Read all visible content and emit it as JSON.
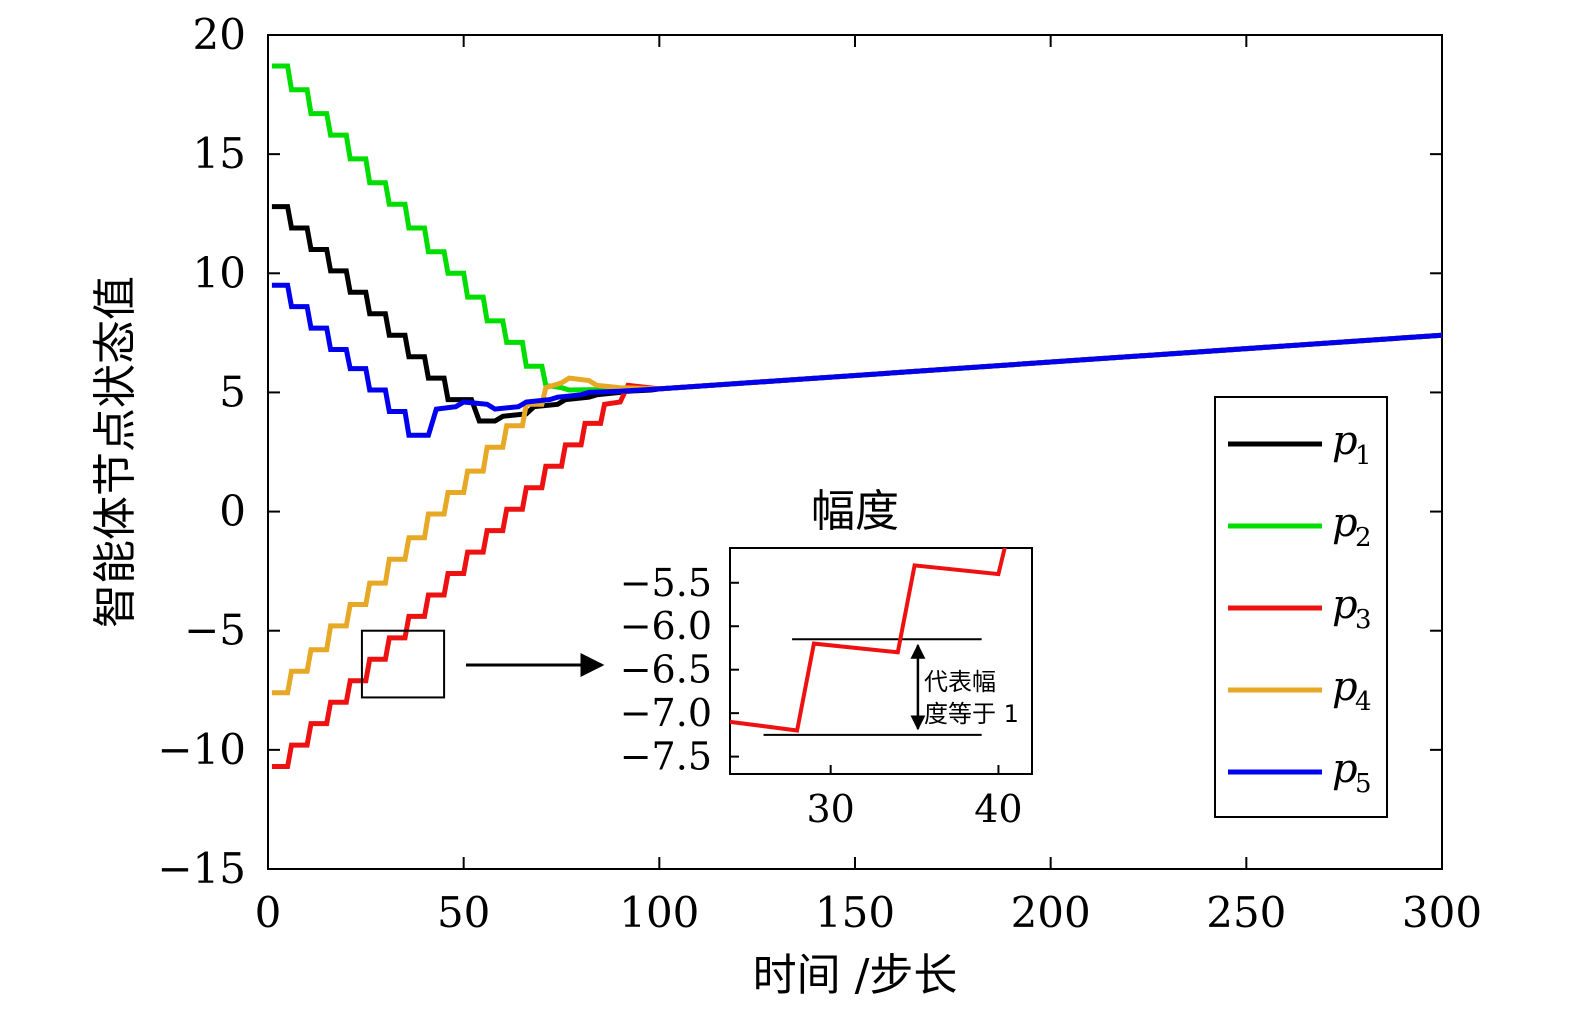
{
  "chart_data": {
    "type": "line",
    "xlabel": "时间 /步长",
    "ylabel": "智能体节点状态值",
    "xlim": [
      0,
      300
    ],
    "ylim": [
      -15,
      20
    ],
    "xticks": [
      "0",
      "50",
      "100",
      "150",
      "200",
      "250",
      "300"
    ],
    "yticks": [
      "20",
      "15",
      "10",
      "5",
      "0",
      "−5",
      "−10",
      "−15"
    ],
    "grid": false,
    "legend_position": "right",
    "series": [
      {
        "name": "p",
        "sub": "1",
        "color": "#000000",
        "points": [
          [
            1,
            12.8
          ],
          [
            5,
            12.8
          ],
          [
            6,
            11.9
          ],
          [
            10,
            11.9
          ],
          [
            11,
            11.0
          ],
          [
            15,
            11.0
          ],
          [
            16,
            10.1
          ],
          [
            20,
            10.1
          ],
          [
            21,
            9.2
          ],
          [
            25,
            9.2
          ],
          [
            26,
            8.3
          ],
          [
            30,
            8.3
          ],
          [
            31,
            7.4
          ],
          [
            35,
            7.4
          ],
          [
            36,
            6.5
          ],
          [
            40,
            6.5
          ],
          [
            41,
            5.6
          ],
          [
            45,
            5.6
          ],
          [
            46,
            4.7
          ],
          [
            52,
            4.7
          ],
          [
            54,
            3.8
          ],
          [
            58,
            3.8
          ],
          [
            60,
            4.0
          ],
          [
            66,
            4.1
          ],
          [
            68,
            4.4
          ],
          [
            74,
            4.5
          ],
          [
            76,
            4.7
          ],
          [
            82,
            4.8
          ],
          [
            84,
            4.9
          ],
          [
            90,
            5.0
          ],
          [
            92,
            5.05
          ],
          [
            98,
            5.1
          ],
          [
            100,
            5.15
          ],
          [
            300,
            7.4
          ]
        ]
      },
      {
        "name": "p",
        "sub": "2",
        "color": "#00dd00",
        "points": [
          [
            1,
            18.7
          ],
          [
            5,
            18.7
          ],
          [
            6,
            17.7
          ],
          [
            10,
            17.7
          ],
          [
            11,
            16.7
          ],
          [
            15,
            16.7
          ],
          [
            16,
            15.8
          ],
          [
            20,
            15.8
          ],
          [
            21,
            14.8
          ],
          [
            25,
            14.8
          ],
          [
            26,
            13.8
          ],
          [
            30,
            13.8
          ],
          [
            31,
            12.9
          ],
          [
            35,
            12.9
          ],
          [
            36,
            11.9
          ],
          [
            40,
            11.9
          ],
          [
            41,
            10.9
          ],
          [
            45,
            10.9
          ],
          [
            46,
            10.0
          ],
          [
            50,
            10.0
          ],
          [
            51,
            9.0
          ],
          [
            55,
            9.0
          ],
          [
            56,
            8.0
          ],
          [
            60,
            8.0
          ],
          [
            61,
            7.1
          ],
          [
            65,
            7.1
          ],
          [
            66,
            6.1
          ],
          [
            70,
            6.1
          ],
          [
            71,
            5.3
          ],
          [
            75,
            5.2
          ],
          [
            77,
            5.1
          ],
          [
            100,
            5.15
          ],
          [
            300,
            7.4
          ]
        ]
      },
      {
        "name": "p",
        "sub": "3",
        "color": "#ee1111",
        "points": [
          [
            1,
            -10.7
          ],
          [
            5,
            -10.7
          ],
          [
            6,
            -9.8
          ],
          [
            10,
            -9.8
          ],
          [
            11,
            -8.9
          ],
          [
            15,
            -8.9
          ],
          [
            16,
            -8.0
          ],
          [
            20,
            -8.0
          ],
          [
            21,
            -7.1
          ],
          [
            25,
            -7.1
          ],
          [
            26,
            -6.2
          ],
          [
            30,
            -6.2
          ],
          [
            31,
            -5.3
          ],
          [
            35,
            -5.3
          ],
          [
            36,
            -4.4
          ],
          [
            40,
            -4.4
          ],
          [
            41,
            -3.5
          ],
          [
            45,
            -3.5
          ],
          [
            46,
            -2.6
          ],
          [
            50,
            -2.6
          ],
          [
            51,
            -1.7
          ],
          [
            55,
            -1.7
          ],
          [
            56,
            -0.8
          ],
          [
            60,
            -0.8
          ],
          [
            61,
            0.1
          ],
          [
            65,
            0.1
          ],
          [
            66,
            1.0
          ],
          [
            70,
            1.0
          ],
          [
            71,
            1.9
          ],
          [
            75,
            1.9
          ],
          [
            76,
            2.8
          ],
          [
            80,
            2.8
          ],
          [
            81,
            3.7
          ],
          [
            85,
            3.7
          ],
          [
            86,
            4.5
          ],
          [
            90,
            4.6
          ],
          [
            92,
            5.3
          ],
          [
            100,
            5.15
          ],
          [
            300,
            7.4
          ]
        ]
      },
      {
        "name": "p",
        "sub": "4",
        "color": "#e6a825",
        "points": [
          [
            1,
            -7.6
          ],
          [
            5,
            -7.6
          ],
          [
            6,
            -6.7
          ],
          [
            10,
            -6.7
          ],
          [
            11,
            -5.8
          ],
          [
            15,
            -5.8
          ],
          [
            16,
            -4.8
          ],
          [
            20,
            -4.8
          ],
          [
            21,
            -3.9
          ],
          [
            25,
            -3.9
          ],
          [
            26,
            -3.0
          ],
          [
            30,
            -3.0
          ],
          [
            31,
            -2.0
          ],
          [
            35,
            -2.0
          ],
          [
            36,
            -1.1
          ],
          [
            40,
            -1.1
          ],
          [
            41,
            -0.1
          ],
          [
            45,
            -0.1
          ],
          [
            46,
            0.8
          ],
          [
            50,
            0.8
          ],
          [
            51,
            1.7
          ],
          [
            55,
            1.7
          ],
          [
            56,
            2.7
          ],
          [
            60,
            2.7
          ],
          [
            61,
            3.6
          ],
          [
            65,
            3.6
          ],
          [
            66,
            4.5
          ],
          [
            70,
            4.5
          ],
          [
            71,
            5.2
          ],
          [
            75,
            5.4
          ],
          [
            77,
            5.6
          ],
          [
            82,
            5.5
          ],
          [
            84,
            5.3
          ],
          [
            90,
            5.2
          ],
          [
            100,
            5.15
          ],
          [
            300,
            7.4
          ]
        ]
      },
      {
        "name": "p",
        "sub": "5",
        "color": "#0000ee",
        "points": [
          [
            1,
            9.5
          ],
          [
            5,
            9.5
          ],
          [
            6,
            8.6
          ],
          [
            10,
            8.6
          ],
          [
            11,
            7.7
          ],
          [
            15,
            7.7
          ],
          [
            16,
            6.8
          ],
          [
            20,
            6.8
          ],
          [
            21,
            6.0
          ],
          [
            25,
            6.0
          ],
          [
            26,
            5.1
          ],
          [
            30,
            5.1
          ],
          [
            31,
            4.2
          ],
          [
            35,
            4.2
          ],
          [
            36,
            3.2
          ],
          [
            41,
            3.2
          ],
          [
            43,
            4.3
          ],
          [
            48,
            4.4
          ],
          [
            50,
            4.6
          ],
          [
            56,
            4.5
          ],
          [
            58,
            4.3
          ],
          [
            64,
            4.4
          ],
          [
            66,
            4.6
          ],
          [
            72,
            4.7
          ],
          [
            74,
            4.8
          ],
          [
            80,
            4.9
          ],
          [
            82,
            5.0
          ],
          [
            90,
            5.05
          ],
          [
            100,
            5.15
          ],
          [
            300,
            7.4
          ]
        ]
      }
    ],
    "zoom_box": {
      "x": [
        24,
        45
      ],
      "y": [
        -7.8,
        -5.0
      ]
    },
    "inset": {
      "title": "幅度",
      "xlim": [
        24,
        42
      ],
      "ylim": [
        -7.7,
        -5.1
      ],
      "xticks": [
        {
          "value": 30,
          "label": "30"
        },
        {
          "value": 40,
          "label": "40"
        }
      ],
      "yticks": [
        {
          "value": -5.5,
          "label": "−5.5"
        },
        {
          "value": -6.0,
          "label": "−6.0"
        },
        {
          "value": -6.5,
          "label": "−6.5"
        },
        {
          "value": -7.0,
          "label": "−7.0"
        },
        {
          "value": -7.5,
          "label": "−7.5"
        }
      ],
      "series_color": "#ee1111",
      "points": [
        [
          24,
          -7.1
        ],
        [
          28,
          -7.2
        ],
        [
          29,
          -6.2
        ],
        [
          34,
          -6.3
        ],
        [
          35,
          -5.3
        ],
        [
          40,
          -5.4
        ],
        [
          40.5,
          -5.0
        ]
      ],
      "ref_lines": [
        {
          "y": -6.15,
          "x": [
            27.7,
            39
          ]
        },
        {
          "y": -7.25,
          "x": [
            26,
            39
          ]
        }
      ],
      "arrow_x": 35.2,
      "annotation_line1": "代表幅",
      "annotation_line2": "度等于 1"
    }
  }
}
